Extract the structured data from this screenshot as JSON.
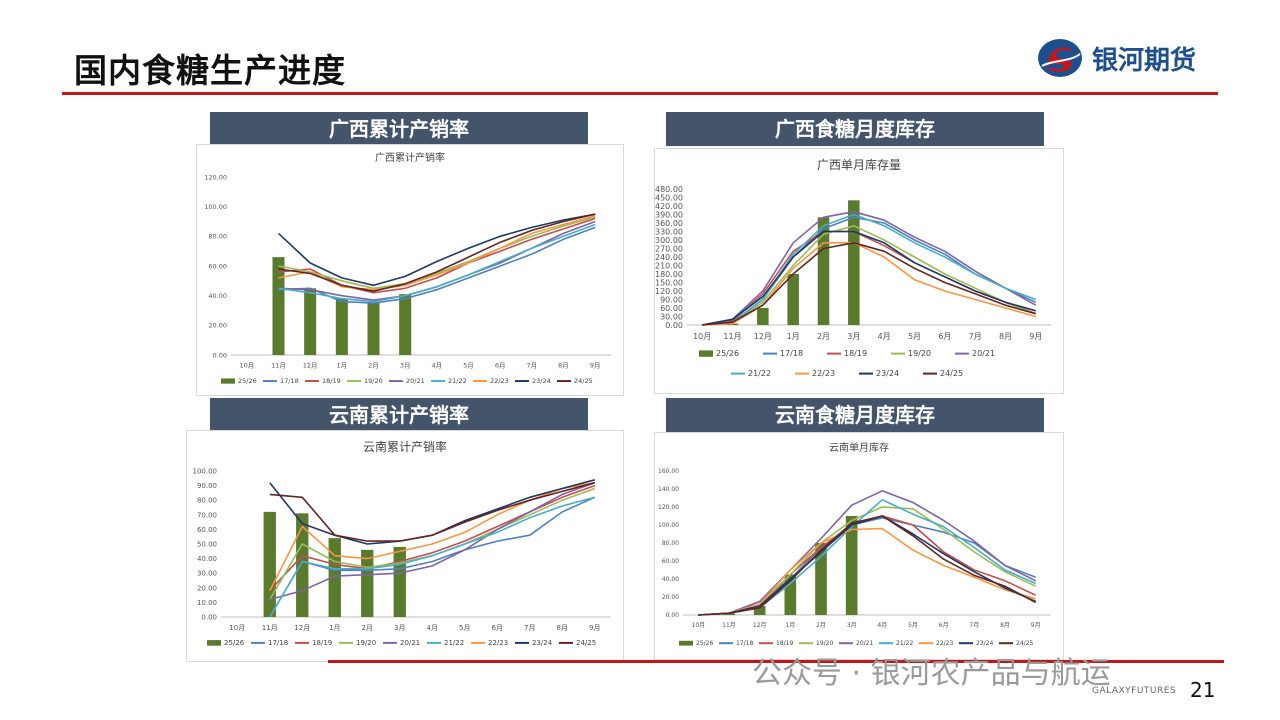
{
  "page": {
    "title": "国内食糖生产进度",
    "logo_text": "银河期货",
    "watermark": "公众号 · 银河农产品与航运",
    "footer_brand": "GALAXYFUTURES",
    "page_number": "21"
  },
  "panels": [
    {
      "header": "广西累计产销率"
    },
    {
      "header": "广西食糖月度库存"
    },
    {
      "header": "云南累计产销率"
    },
    {
      "header": "云南食糖月度库存"
    }
  ],
  "colors": {
    "bars": "#5a7a2e",
    "25/26": "#5a7a2e",
    "17/18": "#4f81bd",
    "18/19": "#c0504d",
    "19/20": "#9bbb59",
    "20/21": "#8064a2",
    "21/22": "#4bacc6",
    "22/23": "#f79646",
    "23/24": "#1f3864",
    "24/25": "#632523",
    "header_bg": "#44546a",
    "accent_red": "#c0161c"
  },
  "chart_data": [
    {
      "type": "bar+line",
      "title": "广西累计产销率",
      "categories": [
        "10月",
        "11月",
        "12月",
        "1月",
        "2月",
        "3月",
        "4月",
        "5月",
        "6月",
        "7月",
        "8月",
        "9月"
      ],
      "ylim": [
        0,
        120
      ],
      "yticks": [
        "0.00",
        "20.00",
        "40.00",
        "60.00",
        "80.00",
        "100.00",
        "120.00"
      ],
      "legend_position": "bottom",
      "bars": {
        "name": "25/26",
        "values": [
          null,
          66,
          45,
          38,
          35,
          41,
          null,
          null,
          null,
          null,
          null,
          null
        ]
      },
      "series": [
        {
          "name": "17/18",
          "values": [
            null,
            44,
            45,
            36,
            35,
            38,
            44,
            52,
            60,
            68,
            78,
            86
          ]
        },
        {
          "name": "18/19",
          "values": [
            null,
            56,
            58,
            47,
            42,
            45,
            52,
            62,
            70,
            78,
            85,
            92
          ]
        },
        {
          "name": "19/20",
          "values": [
            null,
            60,
            56,
            50,
            45,
            48,
            55,
            63,
            72,
            80,
            87,
            93
          ]
        },
        {
          "name": "20/21",
          "values": [
            null,
            45,
            44,
            40,
            37,
            40,
            46,
            54,
            62,
            72,
            82,
            90
          ]
        },
        {
          "name": "21/22",
          "values": [
            null,
            45,
            42,
            38,
            36,
            40,
            46,
            54,
            63,
            72,
            80,
            88
          ]
        },
        {
          "name": "22/23",
          "values": [
            null,
            52,
            56,
            46,
            44,
            47,
            54,
            62,
            72,
            82,
            88,
            94
          ]
        },
        {
          "name": "23/24",
          "values": [
            null,
            82,
            62,
            52,
            47,
            53,
            63,
            72,
            80,
            86,
            91,
            95
          ]
        },
        {
          "name": "24/25",
          "values": [
            null,
            58,
            55,
            47,
            43,
            48,
            56,
            66,
            76,
            84,
            90,
            95
          ]
        }
      ]
    },
    {
      "type": "bar+line",
      "title": "广西单月库存量",
      "categories": [
        "10月",
        "11月",
        "12月",
        "1月",
        "2月",
        "3月",
        "4月",
        "5月",
        "6月",
        "7月",
        "8月",
        "9月"
      ],
      "ylim": [
        0,
        480
      ],
      "yticks": [
        "0.00",
        "30.00",
        "60.00",
        "90.00",
        "120.00",
        "150.00",
        "180.00",
        "210.00",
        "240.00",
        "270.00",
        "300.00",
        "330.00",
        "360.00",
        "390.00",
        "420.00",
        "450.00",
        "480.00"
      ],
      "legend_position": "bottom",
      "bars": {
        "name": "25/26",
        "values": [
          0,
          5,
          60,
          180,
          380,
          440,
          null,
          null,
          null,
          null,
          null,
          null
        ]
      },
      "series": [
        {
          "name": "17/18",
          "values": [
            0,
            10,
            90,
            240,
            340,
            380,
            360,
            300,
            250,
            180,
            130,
            80
          ]
        },
        {
          "name": "18/19",
          "values": [
            0,
            15,
            110,
            260,
            330,
            330,
            280,
            220,
            170,
            120,
            80,
            40
          ]
        },
        {
          "name": "19/20",
          "values": [
            0,
            10,
            80,
            210,
            320,
            350,
            300,
            240,
            180,
            130,
            80,
            40
          ]
        },
        {
          "name": "20/21",
          "values": [
            0,
            20,
            120,
            290,
            380,
            400,
            370,
            310,
            260,
            190,
            130,
            70
          ]
        },
        {
          "name": "21/22",
          "values": [
            0,
            10,
            90,
            250,
            350,
            390,
            350,
            290,
            240,
            180,
            130,
            90
          ]
        },
        {
          "name": "22/23",
          "values": [
            0,
            5,
            70,
            200,
            290,
            290,
            240,
            160,
            120,
            90,
            60,
            30
          ]
        },
        {
          "name": "23/24",
          "values": [
            0,
            20,
            100,
            240,
            330,
            330,
            290,
            220,
            170,
            120,
            80,
            50
          ]
        },
        {
          "name": "24/25",
          "values": [
            0,
            10,
            70,
            180,
            270,
            290,
            260,
            200,
            150,
            110,
            70,
            40
          ]
        }
      ]
    },
    {
      "type": "bar+line",
      "title": "云南累计产销率",
      "categories": [
        "10月",
        "11月",
        "12月",
        "1月",
        "2月",
        "3月",
        "4月",
        "5月",
        "6月",
        "7月",
        "8月",
        "9月"
      ],
      "ylim": [
        0,
        100
      ],
      "yticks": [
        "0.00",
        "10.00",
        "20.00",
        "30.00",
        "40.00",
        "50.00",
        "60.00",
        "70.00",
        "80.00",
        "90.00",
        "100.00"
      ],
      "legend_position": "bottom",
      "bars": {
        "name": "25/26",
        "values": [
          null,
          72,
          71,
          54,
          46,
          48,
          null,
          null,
          null,
          null,
          null,
          null
        ]
      },
      "series": [
        {
          "name": "17/18",
          "values": [
            null,
            0,
            38,
            32,
            32,
            33,
            38,
            46,
            52,
            56,
            72,
            82
          ]
        },
        {
          "name": "18/19",
          "values": [
            null,
            18,
            42,
            36,
            33,
            38,
            44,
            52,
            62,
            72,
            82,
            90
          ]
        },
        {
          "name": "19/20",
          "values": [
            null,
            12,
            50,
            38,
            34,
            37,
            42,
            50,
            60,
            70,
            80,
            88
          ]
        },
        {
          "name": "20/21",
          "values": [
            null,
            12,
            18,
            28,
            29,
            30,
            35,
            46,
            60,
            72,
            84,
            92
          ]
        },
        {
          "name": "21/22",
          "values": [
            null,
            0,
            38,
            33,
            33,
            36,
            42,
            50,
            58,
            68,
            76,
            82
          ]
        },
        {
          "name": "22/23",
          "values": [
            null,
            18,
            62,
            42,
            40,
            45,
            50,
            58,
            70,
            80,
            88,
            92
          ]
        },
        {
          "name": "23/24",
          "values": [
            null,
            92,
            64,
            56,
            50,
            52,
            56,
            66,
            74,
            82,
            88,
            94
          ]
        },
        {
          "name": "24/25",
          "values": [
            null,
            84,
            82,
            56,
            52,
            52,
            56,
            65,
            73,
            80,
            86,
            92
          ]
        }
      ]
    },
    {
      "type": "bar+line",
      "title": "云南单月库存",
      "categories": [
        "10月",
        "11月",
        "12月",
        "1月",
        "2月",
        "3月",
        "4月",
        "5月",
        "6月",
        "7月",
        "8月",
        "9月"
      ],
      "ylim": [
        0,
        160
      ],
      "yticks": [
        "0.00",
        "20.00",
        "40.00",
        "60.00",
        "80.00",
        "100.00",
        "120.00",
        "140.00",
        "160.00"
      ],
      "legend_position": "bottom",
      "bars": {
        "name": "25/26",
        "values": [
          0,
          2,
          10,
          45,
          80,
          110,
          null,
          null,
          null,
          null,
          null,
          null
        ]
      },
      "series": [
        {
          "name": "17/18",
          "values": [
            0,
            2,
            15,
            40,
            75,
            100,
            108,
            100,
            92,
            80,
            55,
            42
          ]
        },
        {
          "name": "18/19",
          "values": [
            0,
            2,
            10,
            45,
            75,
            100,
            110,
            100,
            70,
            50,
            38,
            22
          ]
        },
        {
          "name": "19/20",
          "values": [
            0,
            2,
            12,
            45,
            80,
            105,
            120,
            118,
            95,
            70,
            48,
            32
          ]
        },
        {
          "name": "20/21",
          "values": [
            0,
            2,
            15,
            50,
            85,
            122,
            138,
            125,
            105,
            82,
            55,
            38
          ]
        },
        {
          "name": "21/22",
          "values": [
            0,
            2,
            8,
            35,
            65,
            98,
            128,
            112,
            98,
            75,
            50,
            35
          ]
        },
        {
          "name": "22/23",
          "values": [
            0,
            2,
            12,
            50,
            80,
            95,
            96,
            72,
            55,
            42,
            28,
            18
          ]
        },
        {
          "name": "23/24",
          "values": [
            0,
            2,
            10,
            40,
            70,
            100,
            110,
            90,
            68,
            48,
            30,
            15
          ]
        },
        {
          "name": "24/25",
          "values": [
            0,
            2,
            8,
            38,
            72,
            102,
            110,
            88,
            62,
            44,
            32,
            14
          ]
        }
      ]
    }
  ]
}
